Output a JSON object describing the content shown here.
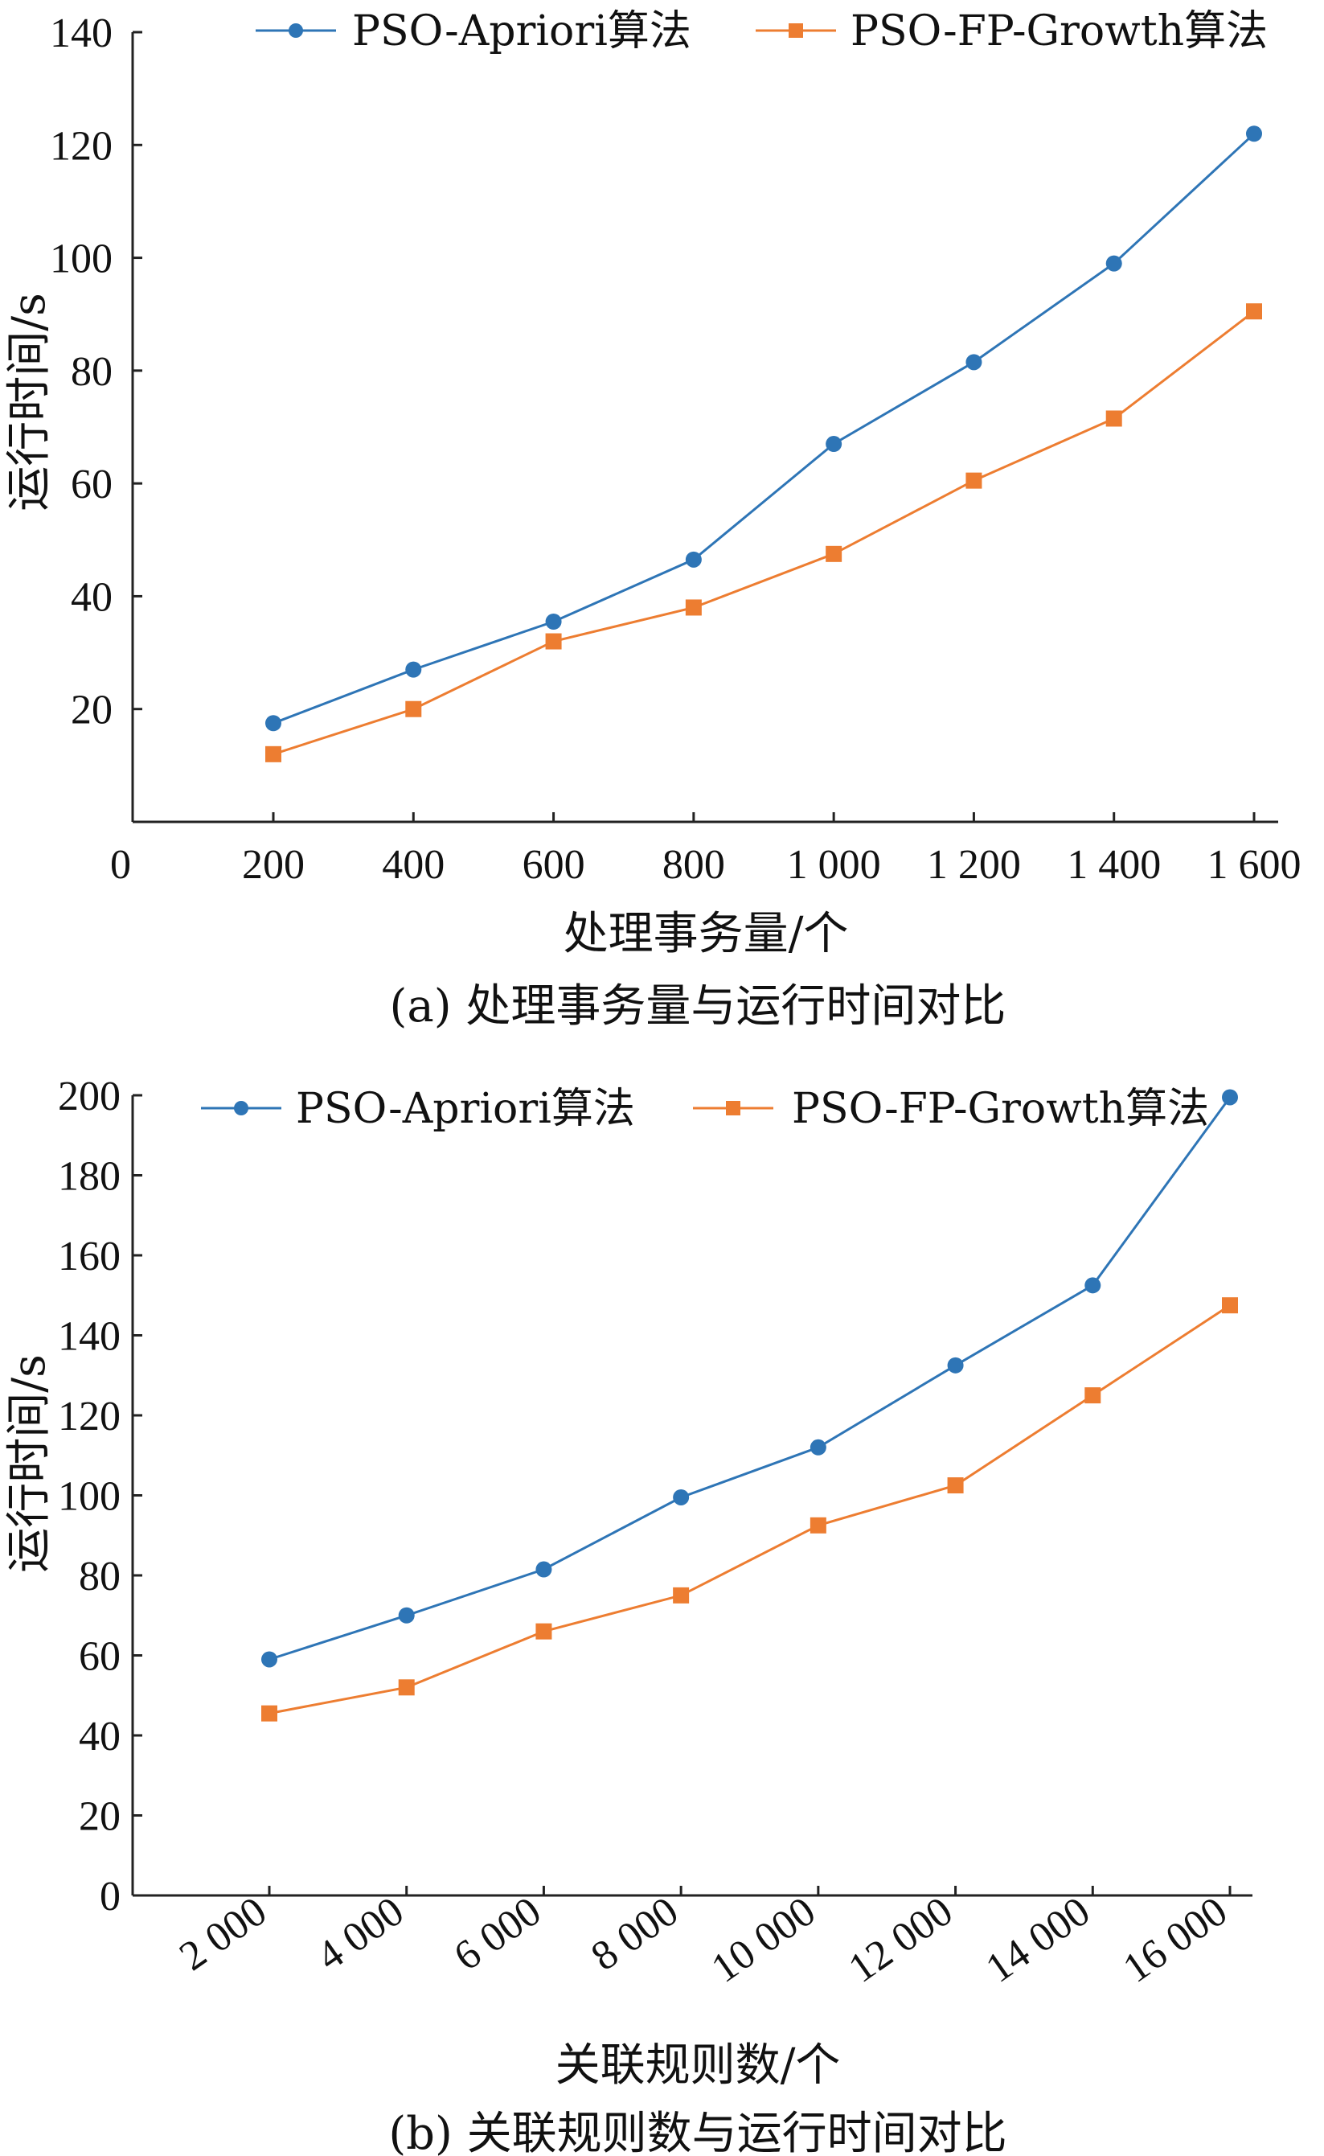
{
  "colors": {
    "apriori": "#2e75b6",
    "fpgrowth": "#ed7d31",
    "axis": "#222222"
  },
  "chart_data": [
    {
      "type": "line",
      "caption": "(a) 处理事务量与运行时间对比",
      "xlabel": "处理事务量/个",
      "ylabel": "运行时间/s",
      "x_origin_label": "0",
      "x": [
        200,
        400,
        600,
        800,
        1000,
        1200,
        1400,
        1600
      ],
      "x_tick_labels": [
        "200",
        "400",
        "600",
        "800",
        "1 000",
        "1 200",
        "1 400",
        "1 600"
      ],
      "ylim": [
        0,
        140
      ],
      "y_ticks": [
        20,
        40,
        60,
        80,
        100,
        120,
        140
      ],
      "legend_position": "top",
      "series": [
        {
          "name": "PSO-Apriori算法",
          "marker": "circle",
          "values": [
            17.5,
            27,
            35.5,
            46.5,
            67,
            81.5,
            99,
            122
          ]
        },
        {
          "name": "PSO-FP-Growth算法",
          "marker": "square",
          "values": [
            12,
            20,
            32,
            38,
            47.5,
            60.5,
            71.5,
            90.5
          ]
        }
      ]
    },
    {
      "type": "line",
      "caption": "(b) 关联规则数与运行时间对比",
      "xlabel": "关联规则数/个",
      "ylabel": "运行时间/s",
      "x": [
        2000,
        4000,
        6000,
        8000,
        10000,
        12000,
        14000,
        16000
      ],
      "x_tick_labels": [
        "2 000",
        "4 000",
        "6 000",
        "8 000",
        "10 000",
        "12 000",
        "14 000",
        "16 000"
      ],
      "ylim": [
        0,
        200
      ],
      "y_ticks": [
        0,
        20,
        40,
        60,
        80,
        100,
        120,
        140,
        160,
        180,
        200
      ],
      "legend_position": "top",
      "series": [
        {
          "name": "PSO-Apriori算法",
          "marker": "circle",
          "values": [
            59,
            70,
            81.5,
            99.5,
            112,
            132.5,
            152.5,
            199.5
          ]
        },
        {
          "name": "PSO-FP-Growth算法",
          "marker": "square",
          "values": [
            45.5,
            52,
            66,
            75,
            92.5,
            102.5,
            125,
            147.5
          ]
        }
      ]
    }
  ]
}
